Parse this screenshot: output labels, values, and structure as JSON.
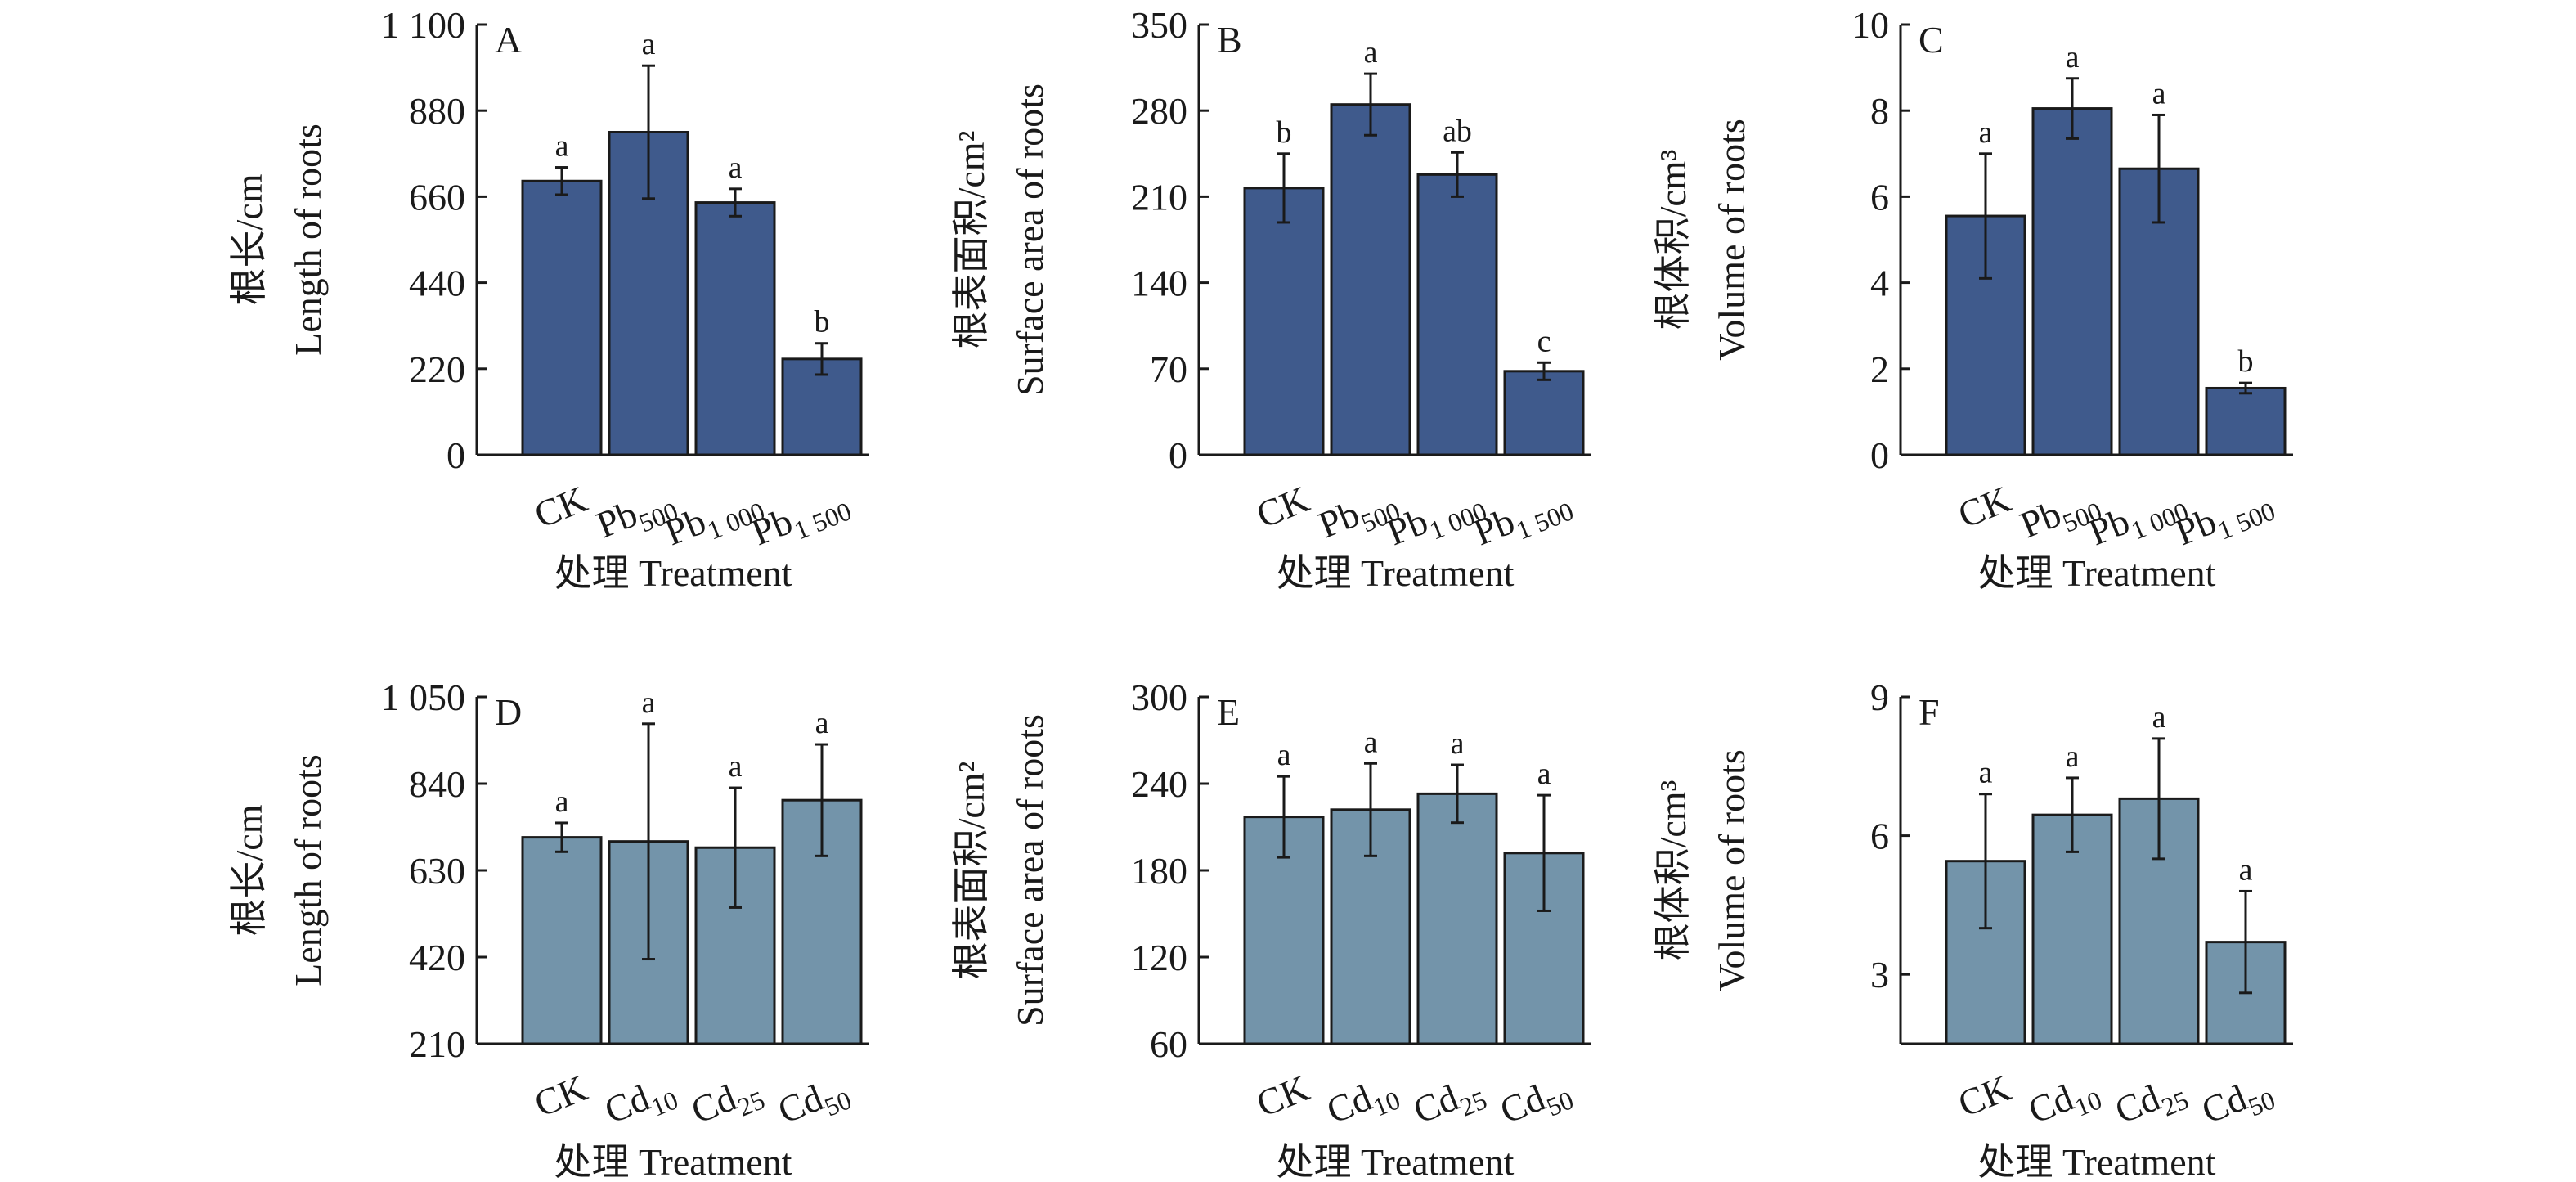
{
  "chart_data": [
    {
      "type": "bar",
      "panel_label": "A",
      "ylabel": [
        "根长/cm",
        "Length of roots"
      ],
      "xlabel": "处理 Treatment",
      "categories": [
        "CK",
        "Pb500",
        "Pb1 000",
        "Pb1 500"
      ],
      "values": [
        700,
        825,
        645,
        245
      ],
      "errors": [
        35,
        170,
        35,
        40
      ],
      "letters": [
        "a",
        "a",
        "a",
        "b"
      ],
      "color": "#3f5a8c",
      "ylim": [
        0,
        1100
      ],
      "yticks": [
        0,
        220,
        440,
        660,
        880,
        {
          "value": 1100,
          "label": "1 100"
        }
      ]
    },
    {
      "type": "bar",
      "panel_label": "B",
      "ylabel": [
        "根表面积/cm²",
        "Surface area of roots"
      ],
      "xlabel": "处理 Treatment",
      "categories": [
        "CK",
        "Pb500",
        "Pb1 000",
        "Pb1 500"
      ],
      "values": [
        217,
        285,
        228,
        68
      ],
      "errors": [
        28,
        25,
        18,
        7
      ],
      "letters": [
        "b",
        "a",
        "ab",
        "c"
      ],
      "color": "#3f5a8c",
      "ylim": [
        0,
        350
      ],
      "yticks": [
        0,
        70,
        140,
        210,
        280,
        350
      ]
    },
    {
      "type": "bar",
      "panel_label": "C",
      "ylabel": [
        "根体积/cm³",
        "Volume of roots"
      ],
      "xlabel": "处理 Treatment",
      "categories": [
        "CK",
        "Pb500",
        "Pb1 000",
        "Pb1 500"
      ],
      "values": [
        5.55,
        8.05,
        6.65,
        1.55
      ],
      "errors": [
        1.45,
        0.7,
        1.25,
        0.12
      ],
      "letters": [
        "a",
        "a",
        "a",
        "b"
      ],
      "color": "#3f5a8c",
      "ylim": [
        0,
        10
      ],
      "yticks": [
        0,
        2,
        4,
        6,
        8,
        10
      ]
    },
    {
      "type": "bar",
      "panel_label": "D",
      "ylabel": [
        "根长/cm",
        "Length of roots"
      ],
      "xlabel": "处理 Treatment",
      "categories": [
        "CK",
        "Cd10",
        "Cd25",
        "Cd50"
      ],
      "values": [
        710,
        700,
        685,
        800
      ],
      "errors": [
        35,
        285,
        145,
        135
      ],
      "letters": [
        "a",
        "a",
        "a",
        "a"
      ],
      "color": "#7394aa",
      "ylim": [
        210,
        1050
      ],
      "yticks": [
        210,
        420,
        630,
        840,
        {
          "value": 1050,
          "label": "1 050"
        }
      ]
    },
    {
      "type": "bar",
      "panel_label": "E",
      "ylabel": [
        "根表面积/cm²",
        "Surface area of roots"
      ],
      "xlabel": "处理 Treatment",
      "categories": [
        "CK",
        "Cd10",
        "Cd25",
        "Cd50"
      ],
      "values": [
        217,
        222,
        233,
        192
      ],
      "errors": [
        28,
        32,
        20,
        40
      ],
      "letters": [
        "a",
        "a",
        "a",
        "a"
      ],
      "color": "#7394aa",
      "ylim": [
        60,
        300
      ],
      "yticks": [
        60,
        120,
        180,
        240,
        300
      ]
    },
    {
      "type": "bar",
      "panel_label": "F",
      "ylabel": [
        "根体积/cm³",
        "Volume of roots"
      ],
      "xlabel": "处理 Treatment",
      "categories": [
        "CK",
        "Cd10",
        "Cd25",
        "Cd50"
      ],
      "values": [
        5.45,
        6.45,
        6.8,
        3.7
      ],
      "errors": [
        1.45,
        0.8,
        1.3,
        1.1
      ],
      "letters": [
        "a",
        "a",
        "a",
        "a"
      ],
      "color": "#7394aa",
      "ylim": [
        1.5,
        9
      ],
      "yticks": [
        3,
        6,
        9
      ]
    }
  ]
}
